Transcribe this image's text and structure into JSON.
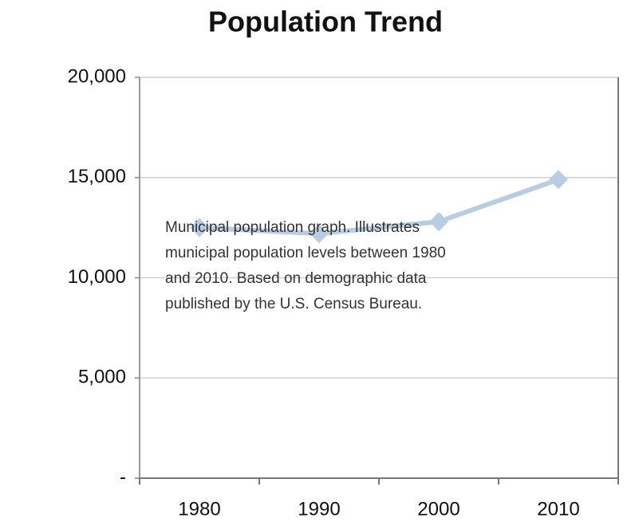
{
  "chart_data": {
    "type": "line",
    "title": "Population Trend",
    "categories": [
      "1980",
      "1990",
      "2000",
      "2010"
    ],
    "series": [
      {
        "name": "Population",
        "color": "#b8cce4",
        "values": [
          12500,
          12200,
          12800,
          14900
        ]
      }
    ],
    "ylim": [
      0,
      20000
    ],
    "yticks": [
      {
        "value": 0,
        "label": "-"
      },
      {
        "value": 5000,
        "label": "5,000"
      },
      {
        "value": 10000,
        "label": "10,000"
      },
      {
        "value": 15000,
        "label": "15,000"
      },
      {
        "value": 20000,
        "label": "20,000"
      }
    ],
    "grid": true,
    "annotation": [
      "Municipal population graph.  Illustrates",
      "municipal population levels between 1980",
      "and 2010.  Based on demographic data",
      "published by the U.S. Census Bureau."
    ]
  }
}
